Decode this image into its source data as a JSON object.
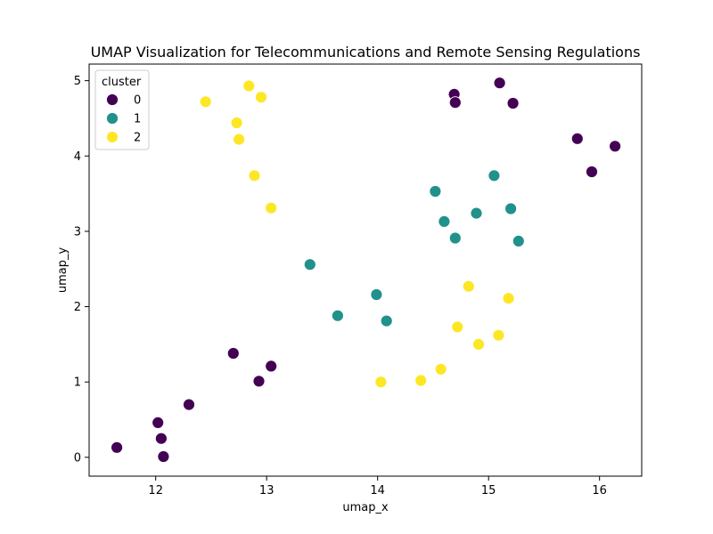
{
  "chart_data": {
    "type": "scatter",
    "title": "UMAP Visualization for Telecommunications and Remote Sensing Regulations",
    "xlabel": "umap_x",
    "ylabel": "umap_y",
    "xlim": [
      11.4,
      16.38
    ],
    "ylim": [
      -0.25,
      5.22
    ],
    "xticks": [
      12,
      13,
      14,
      15,
      16
    ],
    "yticks": [
      0,
      1,
      2,
      3,
      4,
      5
    ],
    "grid": false,
    "legend": {
      "title": "cluster",
      "placement": "top-left"
    },
    "series": [
      {
        "name": "0",
        "color": "#440154",
        "points": [
          [
            11.65,
            0.13
          ],
          [
            12.02,
            0.46
          ],
          [
            12.05,
            0.25
          ],
          [
            12.07,
            0.01
          ],
          [
            12.3,
            0.7
          ],
          [
            12.7,
            1.38
          ],
          [
            12.93,
            1.01
          ],
          [
            13.04,
            1.21
          ],
          [
            14.69,
            4.82
          ],
          [
            14.7,
            4.71
          ],
          [
            15.1,
            4.97
          ],
          [
            15.22,
            4.7
          ],
          [
            15.8,
            4.23
          ],
          [
            15.93,
            3.79
          ],
          [
            16.14,
            4.13
          ]
        ]
      },
      {
        "name": "1",
        "color": "#21918c",
        "points": [
          [
            13.39,
            2.56
          ],
          [
            13.64,
            1.88
          ],
          [
            13.99,
            2.16
          ],
          [
            14.08,
            1.81
          ],
          [
            14.52,
            3.53
          ],
          [
            14.6,
            3.13
          ],
          [
            14.7,
            2.91
          ],
          [
            14.89,
            3.24
          ],
          [
            15.05,
            3.74
          ],
          [
            15.2,
            3.3
          ],
          [
            15.27,
            2.87
          ]
        ]
      },
      {
        "name": "2",
        "color": "#fde725",
        "points": [
          [
            12.45,
            4.72
          ],
          [
            12.73,
            4.44
          ],
          [
            12.75,
            4.22
          ],
          [
            12.84,
            4.93
          ],
          [
            12.89,
            3.74
          ],
          [
            12.95,
            4.78
          ],
          [
            13.04,
            3.31
          ],
          [
            14.03,
            1.0
          ],
          [
            14.39,
            1.02
          ],
          [
            14.57,
            1.17
          ],
          [
            14.72,
            1.73
          ],
          [
            14.82,
            2.27
          ],
          [
            14.91,
            1.5
          ],
          [
            15.09,
            1.62
          ],
          [
            15.18,
            2.11
          ]
        ]
      }
    ]
  }
}
